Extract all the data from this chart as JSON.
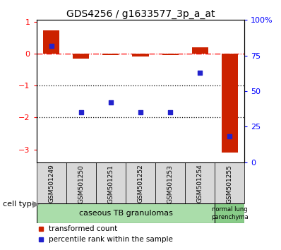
{
  "title": "GDS4256 / g1633577_3p_a_at",
  "categories": [
    "GSM501249",
    "GSM501250",
    "GSM501251",
    "GSM501252",
    "GSM501253",
    "GSM501254",
    "GSM501255"
  ],
  "red_values": [
    0.72,
    -0.15,
    -0.05,
    -0.1,
    -0.05,
    0.2,
    -3.1
  ],
  "blue_values": [
    82,
    35,
    42,
    35,
    35,
    63,
    18
  ],
  "ylim_left": [
    -3.4,
    1.05
  ],
  "ylim_right": [
    0,
    100
  ],
  "yticks_left": [
    1,
    0,
    -1,
    -2,
    -3
  ],
  "yticks_right": [
    0,
    25,
    50,
    75,
    100
  ],
  "ytick_right_labels": [
    "0",
    "25",
    "50",
    "75",
    "100%"
  ],
  "hlines": [
    -1.0,
    -2.0
  ],
  "dashed_hline": 0.0,
  "bar_color": "#cc2200",
  "scatter_color": "#2222cc",
  "group1_label": "caseous TB granulomas",
  "group2_label": "normal lung\nparenchyma",
  "group1_indices": [
    0,
    1,
    2,
    3,
    4,
    5
  ],
  "group2_indices": [
    6
  ],
  "group1_color": "#aaddaa",
  "group2_color": "#88cc88",
  "cell_type_label": "cell type",
  "legend1": "transformed count",
  "legend2": "percentile rank within the sample",
  "bar_width": 0.55,
  "bg_gray": "#d8d8d8"
}
